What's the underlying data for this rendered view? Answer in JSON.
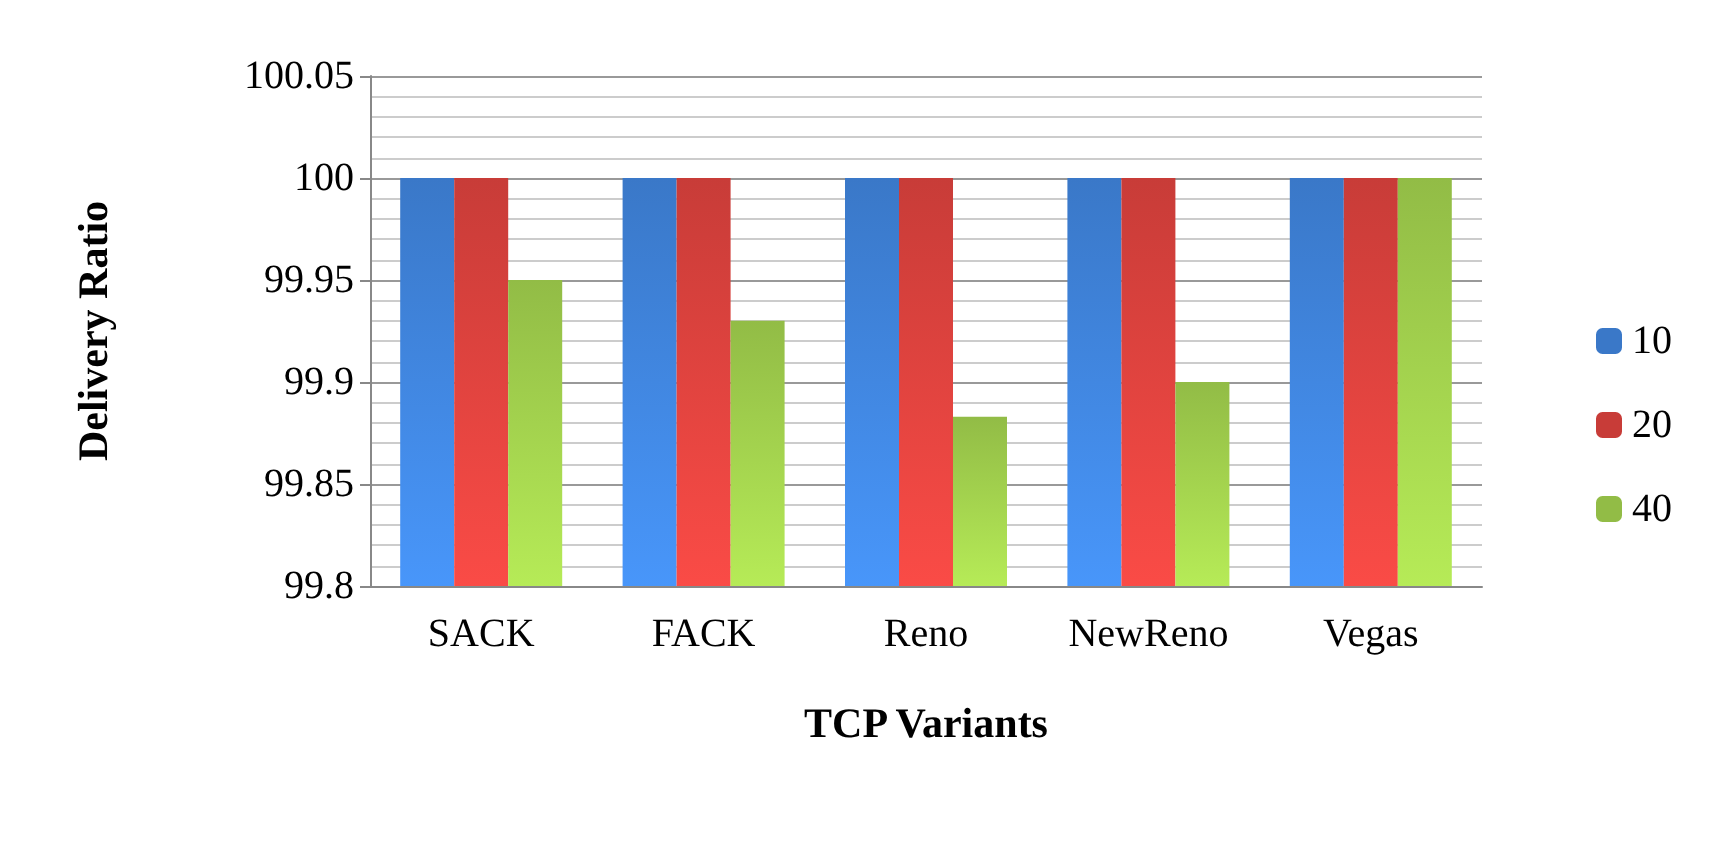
{
  "chart_data": {
    "type": "bar",
    "xlabel": "TCP Variants",
    "ylabel": "Delivery Ratio",
    "categories": [
      "SACK",
      "FACK",
      "Reno",
      "NewReno",
      "Vegas"
    ],
    "series": [
      {
        "name": "10",
        "color": "#3a78c8",
        "values": [
          100,
          100,
          100,
          100,
          100
        ]
      },
      {
        "name": "20",
        "color": "#c83c38",
        "values": [
          100,
          100,
          100,
          100,
          100
        ]
      },
      {
        "name": "40",
        "color": "#92bc46",
        "values": [
          99.95,
          99.93,
          99.883,
          99.9,
          100
        ]
      }
    ],
    "ylim": [
      99.8,
      100.05
    ],
    "yticks": [
      {
        "value": 99.8,
        "label": "99.8"
      },
      {
        "value": 99.85,
        "label": "99.85"
      },
      {
        "value": 99.9,
        "label": "99.9"
      },
      {
        "value": 99.95,
        "label": "99.95"
      },
      {
        "value": 100,
        "label": "100"
      },
      {
        "value": 100.05,
        "label": "100.05"
      }
    ],
    "grid": true,
    "legend": "right"
  }
}
